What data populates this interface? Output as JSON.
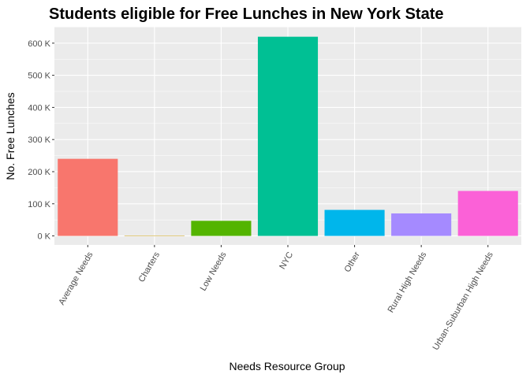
{
  "chart_data": {
    "type": "bar",
    "title": "Students eligible for Free Lunches in New York State",
    "xlabel": "Needs Resource Group",
    "ylabel": "No. Free Lunches",
    "categories": [
      "Average Needs",
      "Charters",
      "Low Needs",
      "NYC",
      "Other",
      "Rural High Needs",
      "Urban-Suburban High Needs"
    ],
    "values": [
      240000,
      1000,
      47000,
      620000,
      81000,
      70000,
      140000
    ],
    "colors": [
      "#F8766D",
      "#C49A00",
      "#53B400",
      "#00C094",
      "#00B6EB",
      "#A58AFF",
      "#FB61D7"
    ],
    "ylim": [
      -28000,
      651000
    ],
    "yticks": [
      0,
      100000,
      200000,
      300000,
      400000,
      500000,
      600000
    ],
    "ytick_labels": [
      "0 K",
      "100 K",
      "200 K",
      "300 K",
      "400 K",
      "500 K",
      "600 K"
    ],
    "grid": true,
    "legend": "none"
  }
}
